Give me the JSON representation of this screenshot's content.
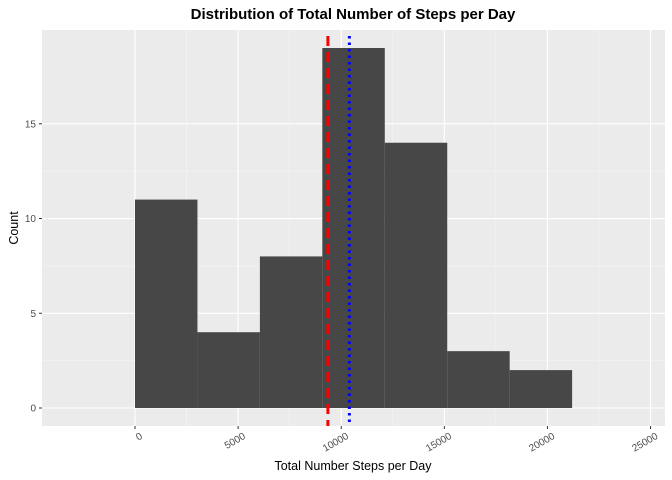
{
  "chart_data": {
    "type": "histogram",
    "title": "Distribution of Total Number of Steps per Day",
    "x_label": "Total Number Steps per Day",
    "y_label": "Count",
    "bins": [
      0,
      3028,
      6056,
      9084,
      12112,
      15140,
      18168,
      21196
    ],
    "counts": [
      11,
      4,
      8,
      19,
      14,
      3,
      2
    ],
    "color": "#474747",
    "xlim": [
      -4510,
      25700
    ],
    "xticks": [
      0,
      5000,
      10000,
      15000,
      20000,
      25000
    ],
    "ylim": [
      -0.95,
      19.95
    ],
    "yticks": [
      0,
      5,
      10,
      15
    ],
    "grid": true,
    "vlines": [
      {
        "value": 9354,
        "color": "#ff0000",
        "style": "dashed"
      },
      {
        "value": 10395,
        "color": "#0000ff",
        "style": "dotted"
      }
    ]
  }
}
